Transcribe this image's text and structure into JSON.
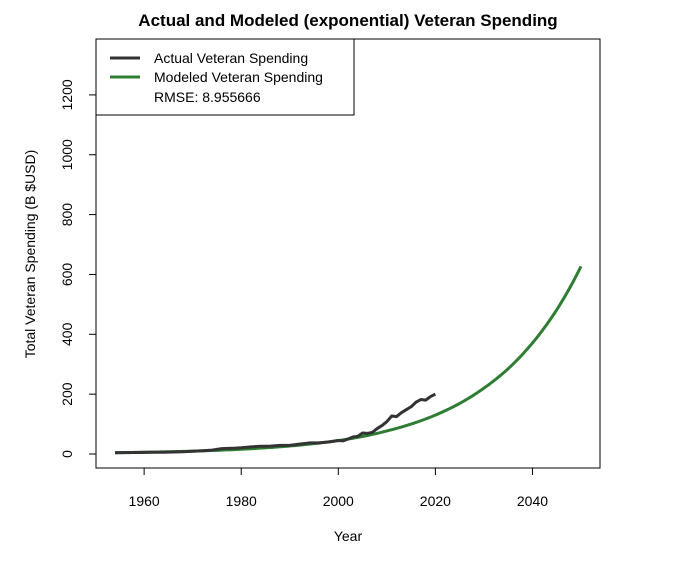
{
  "chart_data": {
    "type": "line",
    "title": "Actual and Modeled (exponential) Veteran Spending",
    "xlabel": "Year",
    "ylabel": "Total Veteran Spending (B $USD)",
    "xlim": [
      1954,
      2050
    ],
    "ylim": [
      0,
      1340
    ],
    "x_ticks": [
      1960,
      1980,
      2000,
      2020,
      2040
    ],
    "y_ticks": [
      0,
      200,
      400,
      600,
      800,
      1000,
      1200
    ],
    "grid": false,
    "legend_position": "top-left",
    "series": [
      {
        "name": "Actual Veteran Spending",
        "color": "#333333",
        "x": [
          1954,
          1956,
          1958,
          1960,
          1962,
          1964,
          1966,
          1968,
          1970,
          1972,
          1974,
          1976,
          1978,
          1980,
          1982,
          1984,
          1986,
          1988,
          1990,
          1992,
          1994,
          1996,
          1998,
          2000,
          2001,
          2002,
          2003,
          2004,
          2005,
          2006,
          2007,
          2008,
          2009,
          2010,
          2011,
          2012,
          2013,
          2014,
          2015,
          2016,
          2017,
          2018,
          2019,
          2020
        ],
        "values": [
          4,
          4.5,
          5,
          5.5,
          5.8,
          6,
          6.5,
          7.5,
          9,
          11,
          13,
          18,
          19,
          21,
          24,
          26,
          26.5,
          29,
          29,
          33,
          37,
          37,
          40,
          45,
          44,
          50,
          57,
          59,
          70,
          69,
          72,
          85,
          95,
          108,
          127,
          125,
          138,
          148,
          158,
          173,
          182,
          180,
          192,
          200
        ]
      },
      {
        "name": "Modeled Veteran Spending",
        "color": "#2e7d32",
        "x": [
          1954,
          1960,
          1965,
          1970,
          1975,
          1980,
          1985,
          1990,
          1995,
          2000,
          2005,
          2010,
          2015,
          2020,
          2025,
          2030,
          2035,
          2040,
          2045,
          2050
        ],
        "values": [
          4.4,
          5.8,
          7.5,
          9.5,
          12.3,
          15.8,
          20.6,
          26.7,
          34.6,
          45,
          58.5,
          77,
          100,
          130,
          169,
          220,
          285,
          371,
          482,
          627
        ]
      }
    ],
    "legend_extra": "RMSE: 8.955666"
  }
}
